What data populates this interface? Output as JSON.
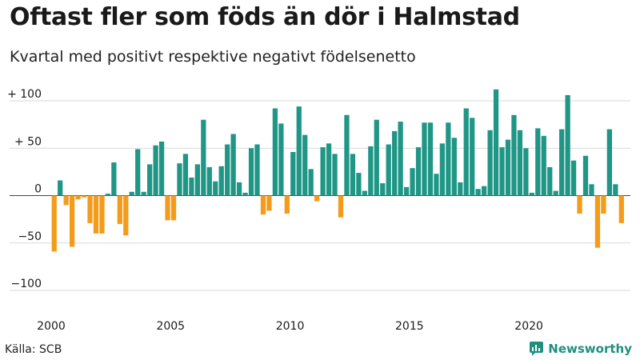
{
  "header": {
    "title": "Oftast fler som föds än dör i Halmstad",
    "subtitle": "Kvartal med positivt respektive negativt födelsenetto"
  },
  "footer": {
    "source": "Källa: SCB",
    "brand": "Newsworthy",
    "brand_icon": "newsworthy-logo-icon"
  },
  "colors": {
    "positive": "#1f9686",
    "negative": "#f39c1b",
    "grid": "#d9d9d9",
    "zero_line": "#444444"
  },
  "chart_data": {
    "type": "bar",
    "title": "Oftast fler som föds än dör i Halmstad",
    "subtitle": "Kvartal med positivt respektive negativt födelsenetto",
    "xlabel": "",
    "ylabel": "",
    "start_year": 2000,
    "periods_per_year": 4,
    "ylim": [
      -110,
      120
    ],
    "xlim": [
      2000,
      2024.25
    ],
    "y_ticks": [
      {
        "value": 100,
        "label": "+ 100"
      },
      {
        "value": 50,
        "label": "+  50"
      },
      {
        "value": 0,
        "label": "0"
      },
      {
        "value": -50,
        "label": "−50"
      },
      {
        "value": -100,
        "label": "−100"
      }
    ],
    "x_ticks": [
      {
        "value": 2000,
        "label": "2000"
      },
      {
        "value": 2005,
        "label": "2005"
      },
      {
        "value": 2010,
        "label": "2010"
      },
      {
        "value": 2015,
        "label": "2015"
      },
      {
        "value": 2020,
        "label": "2020"
      }
    ],
    "grid": true,
    "legend": "none",
    "values": [
      -59,
      16,
      -10,
      -54,
      -4,
      -2,
      -29,
      -40,
      -40,
      2,
      35,
      -30,
      -42,
      4,
      49,
      4,
      33,
      53,
      57,
      -26,
      -26,
      34,
      44,
      19,
      33,
      80,
      30,
      15,
      31,
      54,
      65,
      14,
      3,
      50,
      54,
      -20,
      -16,
      92,
      76,
      -19,
      46,
      94,
      64,
      28,
      -6,
      51,
      55,
      44,
      -23,
      85,
      44,
      24,
      5,
      52,
      80,
      13,
      54,
      68,
      78,
      9,
      29,
      51,
      77,
      77,
      23,
      55,
      77,
      61,
      14,
      92,
      82,
      7,
      10,
      69,
      112,
      51,
      59,
      85,
      69,
      50,
      3,
      71,
      63,
      30,
      5,
      70,
      106,
      37,
      -19,
      42,
      12,
      -55,
      -19,
      70,
      12,
      -29
    ]
  }
}
